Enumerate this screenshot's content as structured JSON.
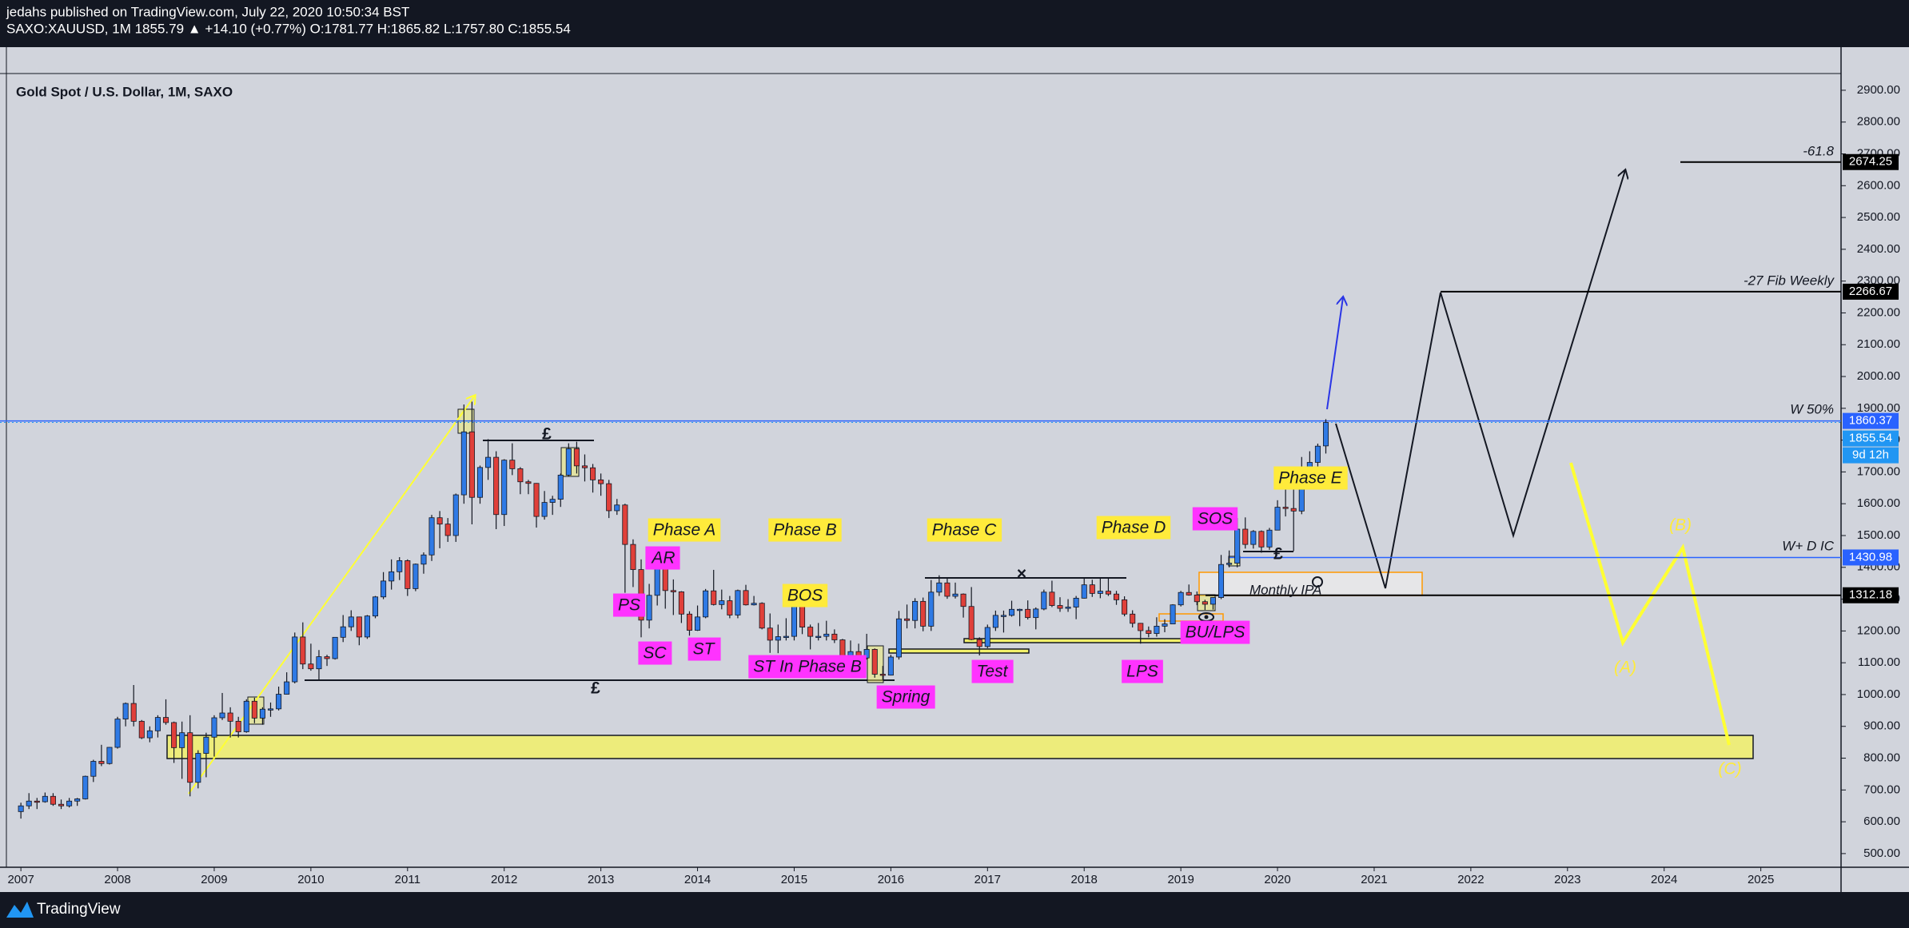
{
  "header": {
    "publisher": "jedahs published on TradingView.com, July 22, 2020 10:50:34 BST",
    "symbol_line": "SAXO:XAUUSD, 1M  1855.79 ▲ +14.10 (+0.77%) O:1781.77 H:1865.82 L:1757.80 C:1855.54"
  },
  "footer": "TradingView",
  "chart_data": {
    "type": "candlestick",
    "title": "Gold Spot / U.S. Dollar, 1M, SAXO",
    "bull_color": "#2f7ae5",
    "bear_color": "#e0403a",
    "wick_color": "#131722",
    "xlim": [
      2006.85,
      2025.83
    ],
    "xticks": [
      2007,
      2008,
      2009,
      2010,
      2011,
      2012,
      2013,
      2014,
      2015,
      2016,
      2017,
      2018,
      2019,
      2020,
      2021,
      2022,
      2023,
      2024,
      2025
    ],
    "ylim": [
      457,
      3033
    ],
    "yticks": [
      {
        "value": 500,
        "label": "500.00"
      },
      {
        "value": 600,
        "label": "600.00"
      },
      {
        "value": 700,
        "label": "700.00"
      },
      {
        "value": 800,
        "label": "800.00"
      },
      {
        "value": 900,
        "label": "900.00"
      },
      {
        "value": 1000,
        "label": "1000.00"
      },
      {
        "value": 1100,
        "label": "1100.00"
      },
      {
        "value": 1200,
        "label": "1200.00"
      },
      {
        "value": 1300,
        "label": "1300.00"
      },
      {
        "value": 1400,
        "label": "1400.00"
      },
      {
        "value": 1500,
        "label": "1500.00"
      },
      {
        "value": 1600,
        "label": "1600.00"
      },
      {
        "value": 1700,
        "label": "1700.00"
      },
      {
        "value": 1800,
        "label": "1800.00"
      },
      {
        "value": 1900,
        "label": "1900.00"
      },
      {
        "value": 2000,
        "label": "2000.00"
      },
      {
        "value": 2100,
        "label": "2100.00"
      },
      {
        "value": 2200,
        "label": "2200.00"
      },
      {
        "value": 2300,
        "label": "2300.00"
      },
      {
        "value": 2400,
        "label": "2400.00"
      },
      {
        "value": 2500,
        "label": "2500.00"
      },
      {
        "value": 2600,
        "label": "2600.00"
      },
      {
        "value": 2700,
        "label": "2700.00"
      },
      {
        "value": 2800,
        "label": "2800.00"
      },
      {
        "value": 2900,
        "label": "2900.00"
      }
    ],
    "candles": [
      [
        632,
        660,
        610,
        650
      ],
      [
        650,
        690,
        640,
        665
      ],
      [
        665,
        675,
        640,
        663
      ],
      [
        663,
        692,
        660,
        680
      ],
      [
        680,
        690,
        650,
        655
      ],
      [
        655,
        670,
        640,
        650
      ],
      [
        650,
        675,
        645,
        665
      ],
      [
        665,
        675,
        650,
        672
      ],
      [
        672,
        745,
        670,
        743
      ],
      [
        743,
        795,
        725,
        790
      ],
      [
        790,
        842,
        775,
        783
      ],
      [
        783,
        835,
        780,
        834
      ],
      [
        834,
        930,
        830,
        923
      ],
      [
        923,
        975,
        900,
        972
      ],
      [
        972,
        1030,
        900,
        916
      ],
      [
        916,
        920,
        860,
        864
      ],
      [
        864,
        900,
        850,
        886
      ],
      [
        886,
        935,
        865,
        928
      ],
      [
        928,
        985,
        905,
        912
      ],
      [
        912,
        915,
        785,
        833
      ],
      [
        833,
        915,
        735,
        880
      ],
      [
        880,
        935,
        680,
        724
      ],
      [
        724,
        825,
        705,
        815
      ],
      [
        815,
        880,
        740,
        866
      ],
      [
        866,
        935,
        805,
        927
      ],
      [
        927,
        1005,
        920,
        942
      ],
      [
        942,
        960,
        865,
        916
      ],
      [
        916,
        930,
        865,
        883
      ],
      [
        883,
        985,
        880,
        979
      ],
      [
        979,
        990,
        910,
        926
      ],
      [
        926,
        960,
        905,
        954
      ],
      [
        954,
        975,
        930,
        955
      ],
      [
        955,
        1025,
        950,
        1001
      ],
      [
        1001,
        1070,
        1000,
        1040
      ],
      [
        1040,
        1195,
        1035,
        1181
      ],
      [
        1181,
        1227,
        1080,
        1096
      ],
      [
        1096,
        1160,
        1075,
        1081
      ],
      [
        1081,
        1140,
        1045,
        1119
      ],
      [
        1119,
        1125,
        1090,
        1113
      ],
      [
        1113,
        1180,
        1110,
        1180
      ],
      [
        1180,
        1250,
        1165,
        1213
      ],
      [
        1213,
        1265,
        1200,
        1244
      ],
      [
        1244,
        1245,
        1155,
        1181
      ],
      [
        1181,
        1250,
        1175,
        1247
      ],
      [
        1247,
        1310,
        1240,
        1307
      ],
      [
        1307,
        1385,
        1300,
        1357
      ],
      [
        1357,
        1425,
        1330,
        1386
      ],
      [
        1386,
        1432,
        1360,
        1421
      ],
      [
        1421,
        1425,
        1310,
        1333
      ],
      [
        1333,
        1412,
        1325,
        1410
      ],
      [
        1410,
        1447,
        1380,
        1439
      ],
      [
        1439,
        1565,
        1420,
        1556
      ],
      [
        1556,
        1577,
        1460,
        1536
      ],
      [
        1536,
        1555,
        1480,
        1500
      ],
      [
        1500,
        1632,
        1480,
        1628
      ],
      [
        1628,
        1912,
        1600,
        1826
      ],
      [
        1826,
        1921,
        1535,
        1620
      ],
      [
        1620,
        1720,
        1600,
        1714
      ],
      [
        1714,
        1803,
        1675,
        1746
      ],
      [
        1746,
        1765,
        1520,
        1566
      ],
      [
        1566,
        1740,
        1530,
        1737
      ],
      [
        1737,
        1790,
        1690,
        1710
      ],
      [
        1710,
        1715,
        1630,
        1669
      ],
      [
        1669,
        1675,
        1630,
        1664
      ],
      [
        1664,
        1665,
        1525,
        1560
      ],
      [
        1560,
        1640,
        1550,
        1604
      ],
      [
        1604,
        1625,
        1565,
        1614
      ],
      [
        1614,
        1695,
        1590,
        1690
      ],
      [
        1690,
        1790,
        1685,
        1773
      ],
      [
        1773,
        1795,
        1695,
        1719
      ],
      [
        1719,
        1755,
        1670,
        1713
      ],
      [
        1713,
        1725,
        1635,
        1675
      ],
      [
        1675,
        1695,
        1625,
        1663
      ],
      [
        1663,
        1675,
        1555,
        1578
      ],
      [
        1578,
        1615,
        1565,
        1596
      ],
      [
        1596,
        1600,
        1320,
        1472
      ],
      [
        1472,
        1488,
        1338,
        1393
      ],
      [
        1393,
        1425,
        1180,
        1234
      ],
      [
        1234,
        1348,
        1208,
        1312
      ],
      [
        1312,
        1433,
        1280,
        1396
      ],
      [
        1396,
        1425,
        1270,
        1327
      ],
      [
        1327,
        1362,
        1250,
        1323
      ],
      [
        1323,
        1325,
        1225,
        1253
      ],
      [
        1253,
        1262,
        1185,
        1202
      ],
      [
        1202,
        1280,
        1200,
        1244
      ],
      [
        1244,
        1332,
        1240,
        1326
      ],
      [
        1326,
        1392,
        1280,
        1283
      ],
      [
        1283,
        1330,
        1268,
        1295
      ],
      [
        1295,
        1310,
        1240,
        1250
      ],
      [
        1250,
        1330,
        1240,
        1327
      ],
      [
        1327,
        1345,
        1280,
        1282
      ],
      [
        1282,
        1310,
        1280,
        1287
      ],
      [
        1287,
        1290,
        1205,
        1209
      ],
      [
        1209,
        1255,
        1131,
        1171
      ],
      [
        1171,
        1220,
        1130,
        1182
      ],
      [
        1182,
        1240,
        1170,
        1183
      ],
      [
        1183,
        1307,
        1170,
        1283
      ],
      [
        1283,
        1285,
        1190,
        1212
      ],
      [
        1212,
        1220,
        1142,
        1183
      ],
      [
        1183,
        1225,
        1170,
        1183
      ],
      [
        1183,
        1232,
        1170,
        1190
      ],
      [
        1190,
        1205,
        1162,
        1172
      ],
      [
        1172,
        1175,
        1077,
        1095
      ],
      [
        1095,
        1170,
        1080,
        1135
      ],
      [
        1135,
        1160,
        1100,
        1115
      ],
      [
        1115,
        1191,
        1110,
        1142
      ],
      [
        1142,
        1145,
        1053,
        1064
      ],
      [
        1064,
        1090,
        1046,
        1061
      ],
      [
        1061,
        1125,
        1060,
        1118
      ],
      [
        1118,
        1263,
        1110,
        1238
      ],
      [
        1238,
        1283,
        1208,
        1233
      ],
      [
        1233,
        1303,
        1208,
        1293
      ],
      [
        1293,
        1305,
        1199,
        1215
      ],
      [
        1215,
        1360,
        1200,
        1322
      ],
      [
        1322,
        1375,
        1310,
        1351
      ],
      [
        1351,
        1368,
        1301,
        1309
      ],
      [
        1309,
        1352,
        1302,
        1316
      ],
      [
        1316,
        1318,
        1242,
        1277
      ],
      [
        1277,
        1338,
        1171,
        1173
      ],
      [
        1173,
        1180,
        1123,
        1151
      ],
      [
        1151,
        1220,
        1146,
        1211
      ],
      [
        1211,
        1264,
        1200,
        1249
      ],
      [
        1249,
        1264,
        1195,
        1249
      ],
      [
        1249,
        1295,
        1245,
        1268
      ],
      [
        1268,
        1270,
        1215,
        1268
      ],
      [
        1268,
        1296,
        1236,
        1242
      ],
      [
        1242,
        1274,
        1205,
        1269
      ],
      [
        1269,
        1330,
        1265,
        1322
      ],
      [
        1322,
        1358,
        1275,
        1280
      ],
      [
        1280,
        1306,
        1260,
        1271
      ],
      [
        1271,
        1300,
        1260,
        1275
      ],
      [
        1275,
        1310,
        1237,
        1303
      ],
      [
        1303,
        1366,
        1302,
        1345
      ],
      [
        1345,
        1361,
        1307,
        1318
      ],
      [
        1318,
        1365,
        1303,
        1325
      ],
      [
        1325,
        1366,
        1310,
        1316
      ],
      [
        1316,
        1326,
        1282,
        1298
      ],
      [
        1298,
        1309,
        1246,
        1253
      ],
      [
        1253,
        1265,
        1211,
        1224
      ],
      [
        1224,
        1225,
        1160,
        1201
      ],
      [
        1201,
        1214,
        1180,
        1192
      ],
      [
        1192,
        1243,
        1182,
        1215
      ],
      [
        1215,
        1237,
        1196,
        1222
      ],
      [
        1222,
        1284,
        1221,
        1282
      ],
      [
        1282,
        1326,
        1277,
        1321
      ],
      [
        1321,
        1346,
        1311,
        1313
      ],
      [
        1313,
        1324,
        1281,
        1292
      ],
      [
        1292,
        1298,
        1266,
        1284
      ],
      [
        1284,
        1306,
        1267,
        1305
      ],
      [
        1305,
        1439,
        1300,
        1409
      ],
      [
        1409,
        1453,
        1400,
        1413
      ],
      [
        1413,
        1555,
        1400,
        1520
      ],
      [
        1520,
        1557,
        1459,
        1472
      ],
      [
        1472,
        1517,
        1459,
        1513
      ],
      [
        1513,
        1516,
        1446,
        1464
      ],
      [
        1464,
        1524,
        1455,
        1517
      ],
      [
        1517,
        1611,
        1517,
        1589
      ],
      [
        1589,
        1689,
        1560,
        1585
      ],
      [
        1585,
        1704,
        1451,
        1577
      ],
      [
        1577,
        1747,
        1567,
        1686
      ],
      [
        1686,
        1765,
        1670,
        1730
      ],
      [
        1730,
        1789,
        1671,
        1781
      ],
      [
        1781.77,
        1865.82,
        1757.8,
        1855.54
      ]
    ],
    "levels": [
      {
        "value": 2674.25,
        "color": "#000000"
      },
      {
        "value": 2266.67,
        "color": "#000000"
      },
      {
        "value": 1860.37,
        "color": "#2962ff"
      },
      {
        "value": 1855.54,
        "color": "#2196f3"
      },
      {
        "value": 1430.98,
        "color": "#2962ff"
      },
      {
        "value": 1312.18,
        "color": "#000000"
      }
    ],
    "countdown": "9d 12h",
    "line_labels": [
      "-61.8",
      "-27 Fib Weekly",
      "W 50%",
      "W+ D IC",
      "Monthly IPA"
    ],
    "annotations": [
      {
        "text": "Phase A",
        "style": "yellow"
      },
      {
        "text": "Phase B",
        "style": "yellow"
      },
      {
        "text": "Phase C",
        "style": "yellow"
      },
      {
        "text": "Phase D",
        "style": "yellow"
      },
      {
        "text": "Phase E",
        "style": "yellow"
      },
      {
        "text": "BOS",
        "style": "yellow"
      },
      {
        "text": "AR",
        "style": "magenta"
      },
      {
        "text": "PS",
        "style": "magenta"
      },
      {
        "text": "SC",
        "style": "magenta"
      },
      {
        "text": "ST",
        "style": "magenta"
      },
      {
        "text": "ST In Phase B",
        "style": "magenta"
      },
      {
        "text": "Spring",
        "style": "magenta"
      },
      {
        "text": "Test",
        "style": "magenta"
      },
      {
        "text": "LPS",
        "style": "magenta"
      },
      {
        "text": "SOS",
        "style": "magenta"
      },
      {
        "text": "BU/LPS",
        "style": "magenta"
      },
      {
        "text": "(A)",
        "style": "wave"
      },
      {
        "text": "(B)",
        "style": "wave"
      },
      {
        "text": "(C)",
        "style": "wave"
      },
      {
        "text": "£",
        "style": "mark"
      },
      {
        "text": "£",
        "style": "mark"
      },
      {
        "text": "£",
        "style": "mark"
      },
      {
        "text": "×",
        "style": "mark"
      }
    ]
  }
}
